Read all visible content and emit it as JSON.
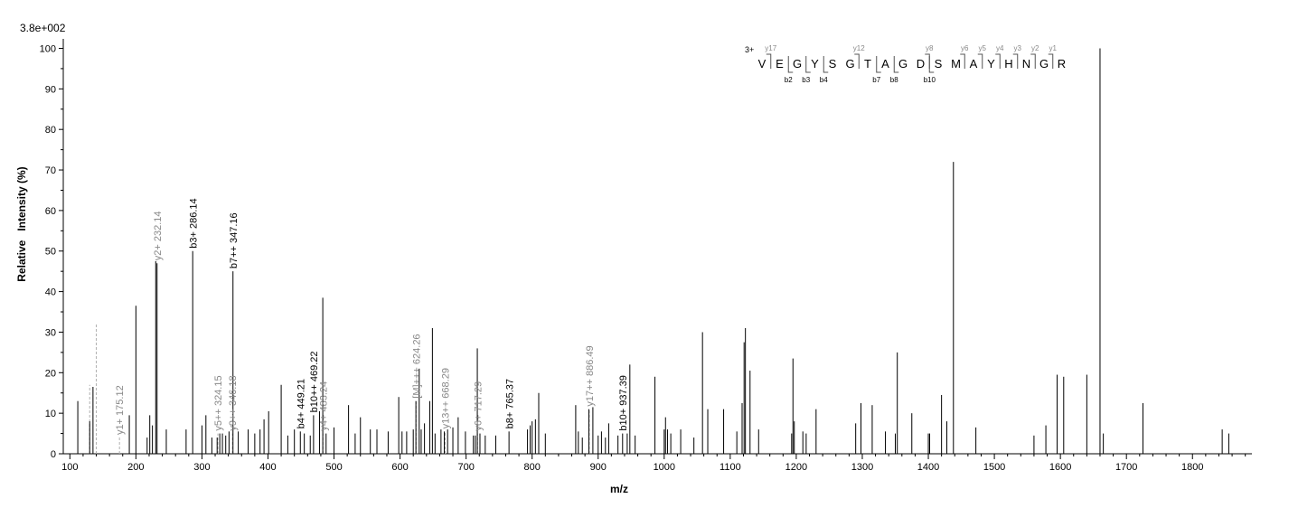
{
  "chart_data": {
    "type": "bar",
    "scale_label": "3.8e+002",
    "xlabel": "m/z",
    "ylabel": "Relative   Intensity (%)",
    "xlim": [
      90,
      1890
    ],
    "ylim": [
      0,
      101
    ],
    "xticks": [
      100,
      200,
      300,
      400,
      500,
      600,
      700,
      800,
      900,
      1000,
      1100,
      1200,
      1300,
      1400,
      1500,
      1600,
      1700,
      1800
    ],
    "yticks": [
      0,
      10,
      20,
      30,
      40,
      50,
      60,
      70,
      80,
      90,
      100
    ],
    "grid": false,
    "peaks": [
      [
        112,
        13
      ],
      [
        130,
        8
      ],
      [
        135,
        16.5
      ],
      [
        190,
        9.5
      ],
      [
        200,
        36.5
      ],
      [
        217,
        4
      ],
      [
        221,
        9.5
      ],
      [
        225,
        7
      ],
      [
        230,
        47.5
      ],
      [
        232,
        47
      ],
      [
        246,
        6
      ],
      [
        276,
        6
      ],
      [
        286,
        50
      ],
      [
        300,
        7
      ],
      [
        306,
        9.5
      ],
      [
        315,
        4
      ],
      [
        323,
        4
      ],
      [
        327,
        5
      ],
      [
        331,
        5
      ],
      [
        336,
        4.5
      ],
      [
        341,
        5.5
      ],
      [
        347,
        45
      ],
      [
        355,
        5.5
      ],
      [
        370,
        6
      ],
      [
        380,
        5
      ],
      [
        388,
        6
      ],
      [
        394,
        8.5
      ],
      [
        401,
        10.5
      ],
      [
        420,
        17
      ],
      [
        430,
        4.5
      ],
      [
        440,
        6
      ],
      [
        449,
        5.5
      ],
      [
        455,
        5
      ],
      [
        464,
        4.5
      ],
      [
        469,
        9.5
      ],
      [
        478,
        10.5
      ],
      [
        483,
        38.5
      ],
      [
        488,
        5
      ],
      [
        500,
        6.5
      ],
      [
        522,
        12
      ],
      [
        532,
        5
      ],
      [
        540,
        9
      ],
      [
        555,
        6
      ],
      [
        565,
        6
      ],
      [
        582,
        5.5
      ],
      [
        598,
        14
      ],
      [
        603,
        5.5
      ],
      [
        610,
        5.5
      ],
      [
        620,
        6
      ],
      [
        624,
        13
      ],
      [
        629,
        21
      ],
      [
        632,
        6
      ],
      [
        637,
        7.5
      ],
      [
        645,
        13
      ],
      [
        649,
        31
      ],
      [
        653,
        5
      ],
      [
        662,
        6
      ],
      [
        667,
        5.5
      ],
      [
        672,
        6
      ],
      [
        680,
        6.5
      ],
      [
        688,
        9
      ],
      [
        699,
        5.5
      ],
      [
        711,
        4.5
      ],
      [
        714,
        4.5
      ],
      [
        717,
        26
      ],
      [
        721,
        5
      ],
      [
        729,
        4.5
      ],
      [
        745,
        4.5
      ],
      [
        765,
        5.5
      ],
      [
        793,
        6
      ],
      [
        797,
        7
      ],
      [
        800,
        8
      ],
      [
        805,
        8.5
      ],
      [
        810,
        15
      ],
      [
        820,
        5
      ],
      [
        866,
        12
      ],
      [
        870,
        5.5
      ],
      [
        876,
        4
      ],
      [
        886,
        11
      ],
      [
        892,
        11.5
      ],
      [
        900,
        4.5
      ],
      [
        905,
        5.5
      ],
      [
        911,
        4
      ],
      [
        916,
        7.5
      ],
      [
        930,
        4.5
      ],
      [
        937,
        5
      ],
      [
        944,
        5
      ],
      [
        948,
        22
      ],
      [
        956,
        4.5
      ],
      [
        986,
        19
      ],
      [
        1000,
        6
      ],
      [
        1002,
        9
      ],
      [
        1005,
        6
      ],
      [
        1010,
        5
      ],
      [
        1025,
        6
      ],
      [
        1045,
        4
      ],
      [
        1058,
        30
      ],
      [
        1066,
        11
      ],
      [
        1090,
        11
      ],
      [
        1110,
        5.5
      ],
      [
        1118,
        12.5
      ],
      [
        1121,
        27.5
      ],
      [
        1123,
        31
      ],
      [
        1130,
        20.5
      ],
      [
        1143,
        6
      ],
      [
        1193,
        5
      ],
      [
        1195,
        23.5
      ],
      [
        1197,
        8
      ],
      [
        1210,
        5.5
      ],
      [
        1215,
        5
      ],
      [
        1230,
        11
      ],
      [
        1290,
        7.5
      ],
      [
        1298,
        12.5
      ],
      [
        1315,
        12
      ],
      [
        1335,
        5.5
      ],
      [
        1350,
        5
      ],
      [
        1353,
        25
      ],
      [
        1375,
        10
      ],
      [
        1400,
        5
      ],
      [
        1402,
        5
      ],
      [
        1420,
        14.5
      ],
      [
        1428,
        8
      ],
      [
        1438,
        72
      ],
      [
        1472,
        6.5
      ],
      [
        1560,
        4.5
      ],
      [
        1578,
        7
      ],
      [
        1595,
        19.5
      ],
      [
        1605,
        19
      ],
      [
        1640,
        19.5
      ],
      [
        1660,
        100
      ],
      [
        1665,
        5
      ],
      [
        1725,
        12.5
      ],
      [
        1845,
        6
      ],
      [
        1855,
        5
      ]
    ],
    "annotations": [
      {
        "text": "y1+ 175.12",
        "x": 175.12,
        "y": 4,
        "color": "#888888"
      },
      {
        "text": "y2+ 232.14",
        "x": 232.14,
        "y": 47,
        "color": "#888888"
      },
      {
        "text": "b3+ 286.14",
        "x": 286.14,
        "y": 50,
        "color": "#000000"
      },
      {
        "text": "y5++ 324.15",
        "x": 324.15,
        "y": 5,
        "color": "#888888"
      },
      {
        "text": "y9++ 346.18",
        "x": 346.18,
        "y": 5,
        "color": "#888888"
      },
      {
        "text": "b7++ 347.16",
        "x": 347.16,
        "y": 45,
        "color": "#000000"
      },
      {
        "text": "b4+ 449.21",
        "x": 449.21,
        "y": 5.5,
        "color": "#000000"
      },
      {
        "text": "b10++ 469.22",
        "x": 469.22,
        "y": 9.5,
        "color": "#000000"
      },
      {
        "text": "y4+ 483.24",
        "x": 483.24,
        "y": 5,
        "color": "#888888"
      },
      {
        "text": "[M]+++ 624.26",
        "x": 624.26,
        "y": 13,
        "color": "#888888"
      },
      {
        "text": "y13++ 668.29",
        "x": 668.29,
        "y": 5.5,
        "color": "#888888"
      },
      {
        "text": "y6+ 717.29",
        "x": 717.29,
        "y": 5,
        "color": "#888888"
      },
      {
        "text": "b8+ 765.37",
        "x": 765.37,
        "y": 5.5,
        "color": "#000000"
      },
      {
        "text": "y17++ 886.49",
        "x": 886.49,
        "y": 11,
        "color": "#888888"
      },
      {
        "text": "b10+ 937.39",
        "x": 937.39,
        "y": 5,
        "color": "#000000"
      }
    ],
    "dashed_peaks": [
      {
        "x": 130,
        "y": 17
      },
      {
        "x": 140,
        "y": 32
      },
      {
        "x": 175.12,
        "y": 4
      },
      {
        "x": 324.15,
        "y": 5
      },
      {
        "x": 346.18,
        "y": 5
      },
      {
        "x": 483.24,
        "y": 5
      },
      {
        "x": 624.26,
        "y": 13
      },
      {
        "x": 668.29,
        "y": 5.5
      },
      {
        "x": 717.29,
        "y": 5
      },
      {
        "x": 886.49,
        "y": 11
      }
    ],
    "sequence": {
      "charge": "3+",
      "residues": [
        "V",
        "E",
        "G",
        "Y",
        "S",
        "G",
        "T",
        "A",
        "G",
        "D",
        "S",
        "M",
        "A",
        "Y",
        "H",
        "N",
        "G",
        "R"
      ],
      "y_ions": [
        {
          "after": 1,
          "label": "y17"
        },
        {
          "after": 6,
          "label": "y12"
        },
        {
          "after": 10,
          "label": "y8"
        },
        {
          "after": 12,
          "label": "y6"
        },
        {
          "after": 13,
          "label": "y5"
        },
        {
          "after": 14,
          "label": "y4"
        },
        {
          "after": 15,
          "label": "y3"
        },
        {
          "after": 16,
          "label": "y2"
        },
        {
          "after": 17,
          "label": "y1"
        }
      ],
      "b_ions": [
        {
          "after": 2,
          "label": "b2"
        },
        {
          "after": 3,
          "label": "b3"
        },
        {
          "after": 4,
          "label": "b4"
        },
        {
          "after": 7,
          "label": "b7"
        },
        {
          "after": 8,
          "label": "b8"
        },
        {
          "after": 10,
          "label": "b10"
        }
      ],
      "y_color": "#888888",
      "b_color": "#000000"
    }
  }
}
